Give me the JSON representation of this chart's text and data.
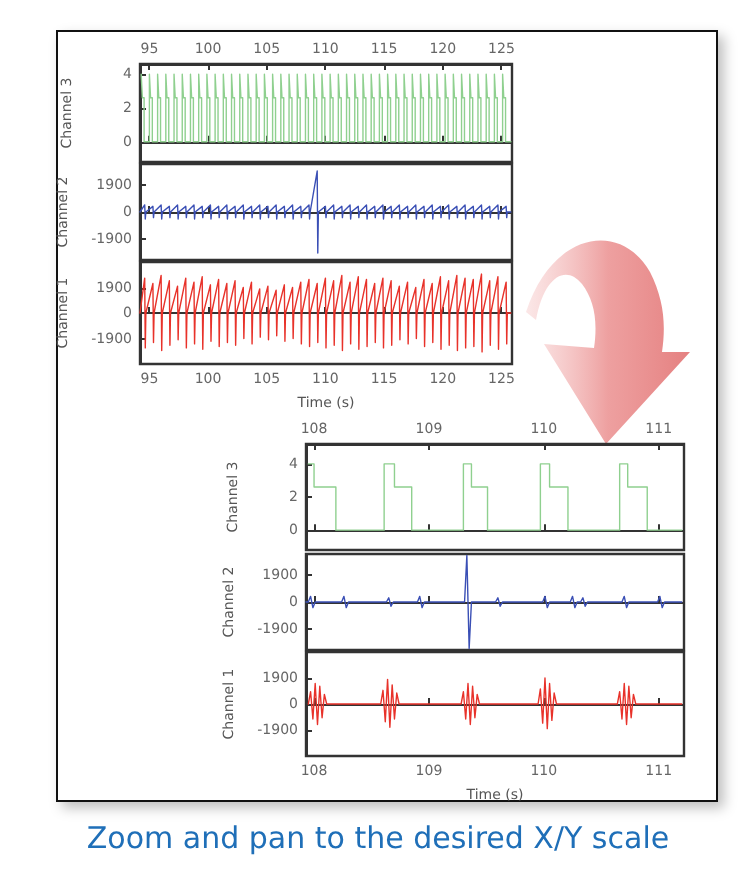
{
  "chart_data": [
    {
      "type": "step",
      "ylabel": "Channel 3",
      "color": "#8fd08f",
      "x": [
        94.3,
        94.4,
        94.55,
        95.0,
        95.1,
        95.25,
        95.7,
        95.8,
        95.95,
        96.4,
        96.5,
        96.65,
        97.1,
        97.2,
        97.35,
        97.8,
        97.9,
        98.05,
        98.5,
        98.6,
        98.75,
        99.2,
        99.3,
        99.45,
        99.9,
        100.0,
        100.15,
        100.6,
        100.7,
        100.85,
        101.3,
        101.4,
        101.55,
        102.0,
        102.1,
        102.25,
        102.7,
        102.8,
        102.95,
        103.4,
        103.5,
        103.65,
        104.1,
        104.2,
        104.35,
        104.8,
        104.9,
        105.05,
        105.5,
        105.6,
        105.75,
        106.2,
        106.3,
        106.45,
        106.9,
        107.0,
        107.15,
        107.6,
        107.7,
        107.85,
        108.3,
        108.4,
        108.55,
        109.0,
        109.1,
        109.25,
        109.7,
        109.8,
        109.95,
        110.4,
        110.5,
        110.65,
        111.1,
        111.2,
        111.35,
        111.8,
        111.9,
        112.05,
        112.5,
        112.6,
        112.75,
        113.2,
        113.3,
        113.45,
        113.9,
        114.0,
        114.15,
        114.6,
        114.7,
        114.85,
        115.3,
        115.4,
        115.55,
        116.0,
        116.1,
        116.25,
        116.7,
        116.8,
        116.95,
        117.4,
        117.5,
        117.65,
        118.1,
        118.2,
        118.35,
        118.8,
        118.9,
        119.05,
        119.5,
        119.6,
        119.75,
        120.2,
        120.3,
        120.45,
        120.9,
        121.0,
        121.15,
        121.6,
        121.7,
        121.85,
        122.3,
        122.4,
        122.55,
        123.0,
        123.1,
        123.25,
        123.7,
        123.8,
        123.95,
        124.4,
        124.5,
        124.65,
        125.1,
        125.2,
        125.35,
        125.8
      ],
      "values": [
        4,
        2.6,
        0,
        4,
        2.6,
        0,
        4,
        2.6,
        0,
        4,
        2.6,
        0,
        4,
        2.6,
        0,
        4,
        2.6,
        0,
        4,
        2.6,
        0,
        4,
        2.6,
        0,
        4,
        2.6,
        0,
        4,
        2.6,
        0,
        4,
        2.6,
        0,
        4,
        2.6,
        0,
        4,
        2.6,
        0,
        4,
        2.6,
        0,
        4,
        2.6,
        0,
        4,
        2.6,
        0,
        4,
        2.6,
        0,
        4,
        2.6,
        0,
        4,
        2.6,
        0,
        4,
        2.6,
        0,
        4,
        2.6,
        0,
        4,
        2.6,
        0,
        4,
        2.6,
        0,
        4,
        2.6,
        0,
        4,
        2.6,
        0,
        4,
        2.6,
        0,
        4,
        2.6,
        0,
        4,
        2.6,
        0,
        4,
        2.6,
        0,
        4,
        2.6,
        0,
        4,
        2.6,
        0,
        4,
        2.6,
        0,
        4,
        2.6,
        0,
        4,
        2.6,
        0,
        4,
        2.6,
        0,
        4,
        2.6,
        0,
        4,
        2.6,
        0,
        4,
        2.6,
        0,
        4,
        2.6,
        0,
        4,
        2.6,
        0,
        4,
        2.6,
        0,
        4,
        2.6,
        0,
        4,
        2.6,
        0,
        4,
        2.6,
        0,
        4,
        2.6,
        0,
        0
      ],
      "xlim": [
        94.2,
        125.9
      ],
      "xticks": [
        95,
        100,
        105,
        110,
        115,
        120,
        125
      ],
      "x2lim": [
        94.2,
        125.9
      ],
      "x2ticks": [
        95,
        100,
        105,
        110,
        115,
        120,
        125
      ],
      "ylim": [
        -1.2,
        4.6
      ],
      "yticks": [
        0,
        2,
        4
      ],
      "tick_labels": "y"
    },
    {
      "type": "line",
      "ylabel": "Channel 2",
      "color": "#3a4fb5",
      "x": [
        94.2,
        94.6,
        94.65,
        94.7,
        95.3,
        95.35,
        95.4,
        96.0,
        96.05,
        96.1,
        96.7,
        96.75,
        96.8,
        97.4,
        97.45,
        97.5,
        98.1,
        98.15,
        98.2,
        98.8,
        98.85,
        98.9,
        99.5,
        99.55,
        99.6,
        100.2,
        100.25,
        100.3,
        100.9,
        100.95,
        101.0,
        101.6,
        101.65,
        101.7,
        102.3,
        102.35,
        102.4,
        103.0,
        103.05,
        103.1,
        103.7,
        103.75,
        103.8,
        104.4,
        104.45,
        104.5,
        105.1,
        105.15,
        105.2,
        105.8,
        105.85,
        105.9,
        106.5,
        106.55,
        106.6,
        107.2,
        107.25,
        107.3,
        107.9,
        107.95,
        108.0,
        108.6,
        108.65,
        108.7,
        109.3,
        109.35,
        109.4,
        110.0,
        110.05,
        110.1,
        110.7,
        110.75,
        110.8,
        111.4,
        111.45,
        111.5,
        112.1,
        112.15,
        112.2,
        112.8,
        112.85,
        112.9,
        113.5,
        113.55,
        113.6,
        114.2,
        114.25,
        114.3,
        114.9,
        114.95,
        115.0,
        115.6,
        115.65,
        115.7,
        116.3,
        116.35,
        116.4,
        117.0,
        117.05,
        117.1,
        117.7,
        117.75,
        117.8,
        118.4,
        118.45,
        118.5,
        119.1,
        119.15,
        119.2,
        119.8,
        119.85,
        119.9,
        120.5,
        120.55,
        120.6,
        121.2,
        121.25,
        121.3,
        121.9,
        121.95,
        122.0,
        122.6,
        122.65,
        122.7,
        123.3,
        123.35,
        123.4,
        124.0,
        124.05,
        124.1,
        124.7,
        124.75,
        124.8,
        125.4,
        125.45,
        125.5,
        125.8
      ],
      "values": [
        0,
        500,
        -500,
        0,
        400,
        -400,
        0,
        500,
        -500,
        0,
        400,
        -400,
        0,
        500,
        -500,
        0,
        400,
        -400,
        0,
        500,
        -500,
        0,
        400,
        -400,
        0,
        500,
        -500,
        0,
        400,
        -400,
        0,
        500,
        -500,
        0,
        400,
        -400,
        0,
        500,
        -500,
        0,
        400,
        -400,
        0,
        500,
        -500,
        0,
        400,
        -400,
        0,
        500,
        -500,
        0,
        400,
        -400,
        0,
        500,
        -500,
        0,
        400,
        -400,
        0,
        500,
        -500,
        0,
        2900,
        -2900,
        0,
        400,
        -400,
        0,
        500,
        -500,
        0,
        400,
        -400,
        0,
        500,
        -500,
        0,
        400,
        -400,
        0,
        500,
        -500,
        0,
        400,
        -400,
        0,
        500,
        -500,
        0,
        400,
        -400,
        0,
        500,
        -500,
        0,
        400,
        -400,
        0,
        500,
        -500,
        0,
        400,
        -400,
        0,
        500,
        -500,
        0,
        400,
        -400,
        0,
        500,
        -500,
        0,
        400,
        -400,
        0,
        500,
        -500,
        0,
        400,
        -400,
        0,
        500,
        -500,
        0,
        400,
        -400,
        0,
        500,
        -500,
        0,
        400,
        -400,
        0,
        0
      ],
      "xlim": [
        94.2,
        125.9
      ],
      "xticks": [
        95,
        100,
        105,
        110,
        115,
        120,
        125
      ],
      "ylim": [
        -3400,
        3400
      ],
      "yticks": [
        -1900,
        0,
        1900
      ],
      "tick_labels": "y"
    },
    {
      "type": "line",
      "ylabel": "Channel 1",
      "xlabel": "Time (s)",
      "color": "#e8322a",
      "x": [
        94.2,
        94.6,
        94.65,
        94.7,
        95.3,
        95.35,
        95.4,
        96.0,
        96.05,
        96.1,
        96.7,
        96.75,
        96.8,
        97.4,
        97.45,
        97.5,
        98.1,
        98.15,
        98.2,
        98.8,
        98.85,
        98.9,
        99.5,
        99.55,
        99.6,
        100.2,
        100.25,
        100.3,
        100.9,
        100.95,
        101.0,
        101.6,
        101.65,
        101.7,
        102.3,
        102.35,
        102.4,
        103.0,
        103.05,
        103.1,
        103.7,
        103.75,
        103.8,
        104.4,
        104.45,
        104.5,
        105.1,
        105.15,
        105.2,
        105.8,
        105.85,
        105.9,
        106.5,
        106.55,
        106.6,
        107.2,
        107.25,
        107.3,
        107.9,
        107.95,
        108.0,
        108.6,
        108.65,
        108.7,
        109.3,
        109.35,
        109.4,
        110.0,
        110.05,
        110.1,
        110.7,
        110.75,
        110.8,
        111.4,
        111.45,
        111.5,
        112.1,
        112.15,
        112.2,
        112.8,
        112.85,
        112.9,
        113.5,
        113.55,
        113.6,
        114.2,
        114.25,
        114.3,
        114.9,
        114.95,
        115.0,
        115.6,
        115.65,
        115.7,
        116.3,
        116.35,
        116.4,
        117.0,
        117.05,
        117.1,
        117.7,
        117.75,
        117.8,
        118.4,
        118.45,
        118.5,
        119.1,
        119.15,
        119.2,
        119.8,
        119.85,
        119.9,
        120.5,
        120.55,
        120.6,
        121.2,
        121.25,
        121.3,
        121.9,
        121.95,
        122.0,
        122.6,
        122.65,
        122.7,
        123.3,
        123.35,
        123.4,
        124.0,
        124.05,
        124.1,
        124.7,
        124.75,
        124.8,
        125.4,
        125.45,
        125.5,
        125.8
      ],
      "values": [
        0,
        2600,
        -2600,
        0,
        2200,
        -2200,
        0,
        2800,
        -2800,
        0,
        2400,
        -2400,
        0,
        2000,
        -2000,
        0,
        2600,
        -2600,
        0,
        2300,
        -2300,
        0,
        2700,
        -2700,
        0,
        2100,
        -2100,
        0,
        2500,
        -2500,
        0,
        2200,
        -2200,
        0,
        2400,
        -2400,
        0,
        1900,
        -1900,
        0,
        2300,
        -2300,
        0,
        1800,
        -1800,
        0,
        2000,
        -2000,
        0,
        1700,
        -1700,
        0,
        2100,
        -2100,
        0,
        1900,
        -1900,
        0,
        2300,
        -2300,
        0,
        2500,
        -2500,
        0,
        2200,
        -2200,
        0,
        2600,
        -2600,
        0,
        2400,
        -2400,
        0,
        2800,
        -2800,
        0,
        2300,
        -2300,
        0,
        2700,
        -2700,
        0,
        2500,
        -2500,
        0,
        2200,
        -2200,
        0,
        2600,
        -2600,
        0,
        2400,
        -2400,
        0,
        2000,
        -2000,
        0,
        2300,
        -2300,
        0,
        1900,
        -1900,
        0,
        2500,
        -2500,
        0,
        2200,
        -2200,
        0,
        2700,
        -2700,
        0,
        2400,
        -2400,
        0,
        2800,
        -2800,
        0,
        2600,
        -2600,
        0,
        2500,
        -2500,
        0,
        2900,
        -2900,
        0,
        2400,
        -2400,
        0,
        2700,
        -2700,
        0,
        2300,
        -2300,
        0,
        0
      ],
      "xlim": [
        94.2,
        125.9
      ],
      "xticks": [
        95,
        100,
        105,
        110,
        115,
        120,
        125
      ],
      "ylim": [
        -3800,
        3800
      ],
      "yticks": [
        -1900,
        0,
        1900
      ]
    },
    {
      "type": "step",
      "ylabel": "Channel 3",
      "color": "#8fd08f",
      "x": [
        107.95,
        108.0,
        108.19,
        108.61,
        108.7,
        108.85,
        109.3,
        109.37,
        109.51,
        109.97,
        110.05,
        110.21,
        110.66,
        110.73,
        110.9,
        111.2
      ],
      "values": [
        4,
        2.6,
        0,
        4,
        2.6,
        0,
        4,
        2.6,
        0,
        4,
        2.6,
        0,
        4,
        2.6,
        0,
        0
      ],
      "xlim": [
        107.93,
        111.22
      ],
      "xticks": [
        108,
        109,
        110,
        111
      ],
      "x2lim": [
        107.93,
        111.22
      ],
      "x2ticks": [
        108,
        109,
        110,
        111
      ],
      "ylim": [
        -1.2,
        5.2
      ],
      "yticks": [
        0,
        2,
        4
      ],
      "tick_labels": "y"
    },
    {
      "type": "line",
      "ylabel": "Channel 2",
      "color": "#3a4fb5",
      "x": [
        107.93,
        107.95,
        107.97,
        107.99,
        108.01,
        108.24,
        108.26,
        108.28,
        108.3,
        108.63,
        108.65,
        108.67,
        108.69,
        108.9,
        108.92,
        108.94,
        108.96,
        109.31,
        109.33,
        109.35,
        109.37,
        109.58,
        109.6,
        109.62,
        109.64,
        109.99,
        110.01,
        110.03,
        110.05,
        110.23,
        110.25,
        110.27,
        110.29,
        110.32,
        110.34,
        110.36,
        110.38,
        110.68,
        110.7,
        110.72,
        110.74,
        110.99,
        111.01,
        111.03,
        111.05,
        111.2
      ],
      "values": [
        0,
        0,
        400,
        -400,
        0,
        0,
        400,
        -400,
        0,
        0,
        300,
        -300,
        0,
        0,
        400,
        -400,
        0,
        0,
        3300,
        -3300,
        0,
        0,
        300,
        -300,
        0,
        0,
        400,
        -400,
        0,
        0,
        400,
        -400,
        0,
        0,
        300,
        -300,
        0,
        0,
        400,
        -400,
        0,
        0,
        400,
        -400,
        0,
        0
      ],
      "xlim": [
        107.93,
        111.22
      ],
      "xticks": [
        108,
        109,
        110,
        111
      ],
      "ylim": [
        -3400,
        3400
      ],
      "yticks": [
        -1900,
        0,
        1900
      ],
      "tick_labels": "y"
    },
    {
      "type": "line",
      "ylabel": "Channel 1",
      "xlabel": "Time (s)",
      "color": "#e8322a",
      "x": [
        107.95,
        107.97,
        107.99,
        108.01,
        108.03,
        108.05,
        108.07,
        108.09,
        108.11,
        108.58,
        108.6,
        108.62,
        108.64,
        108.66,
        108.68,
        108.7,
        108.72,
        108.74,
        109.28,
        109.3,
        109.32,
        109.34,
        109.36,
        109.38,
        109.4,
        109.42,
        109.44,
        109.95,
        109.97,
        109.99,
        110.01,
        110.03,
        110.05,
        110.07,
        110.09,
        110.11,
        110.64,
        110.66,
        110.68,
        110.7,
        110.72,
        110.74,
        110.76,
        110.78,
        110.8,
        111.2
      ],
      "values": [
        0,
        900,
        -1100,
        1500,
        -1500,
        1300,
        -1000,
        700,
        0,
        0,
        1000,
        -1300,
        1800,
        -1700,
        1400,
        -1100,
        800,
        0,
        0,
        900,
        -1100,
        1500,
        -1500,
        1300,
        -1000,
        700,
        0,
        0,
        1100,
        -1400,
        1900,
        -1800,
        1500,
        -1200,
        800,
        0,
        0,
        900,
        -1100,
        1500,
        -1500,
        1300,
        -1000,
        700,
        0,
        0
      ],
      "xlim": [
        107.93,
        111.22
      ],
      "xticks": [
        108,
        109,
        110,
        111
      ],
      "ylim": [
        -3800,
        3800
      ],
      "yticks": [
        -1900,
        0,
        1900
      ],
      "annotations": [
        "Zoom and pan to the desired X/Y scale"
      ]
    }
  ]
}
